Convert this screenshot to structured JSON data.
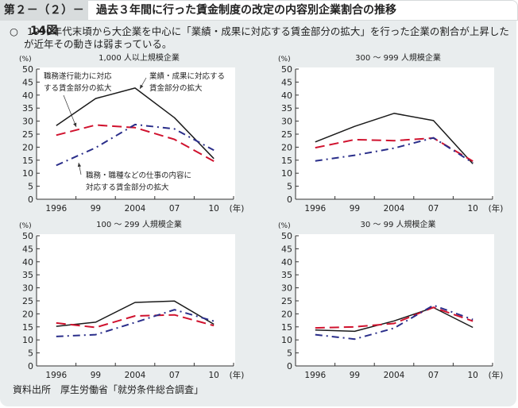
{
  "header": {
    "figure_label": "第２－（２）－14図",
    "title": "過去３年間に行った賃金制度の改定の内容別企業割合の推移"
  },
  "summary": {
    "bullet": "○",
    "line1": "1990年代末頃から大企業を中心に「業績・成果に対応する賃金部分の拡大」を行った企業の割合が上昇した",
    "line2": "が近年その動きは弱まっている。"
  },
  "source": "資料出所　厚生労働省「就労条件総合調査」",
  "series_styles": {
    "performance": {
      "color": "#1a1a1a",
      "dash": "none"
    },
    "ability": {
      "color": "#d0122e",
      "dash": "long-dash"
    },
    "job_content": {
      "color": "#2a2e8a",
      "dash": "dash-dot"
    }
  },
  "chart_data": [
    {
      "type": "line",
      "title": "1,000 人以上規模企業",
      "ylabel": "(%)",
      "xlabel": "(年)",
      "categories": [
        "1996",
        "99",
        "2004",
        "07",
        "10"
      ],
      "ylim": [
        0,
        50
      ],
      "yticks": [
        0,
        5,
        10,
        15,
        20,
        25,
        30,
        35,
        40,
        45,
        50
      ],
      "grid": false,
      "series": [
        {
          "key": "performance",
          "name": "業績・成果に対応する賃金部分の拡大",
          "values": [
            28.3,
            38.7,
            42.7,
            31.3,
            15.6
          ]
        },
        {
          "key": "ability",
          "name": "職務遂行能力に対応する賃金部分の拡大",
          "values": [
            24.6,
            28.5,
            27.5,
            23.0,
            14.6
          ]
        },
        {
          "key": "job_content",
          "name": "職務・職種などの仕事の内容に対応する賃金部分の拡大",
          "values": [
            13.0,
            19.8,
            28.7,
            27.0,
            18.8
          ]
        }
      ],
      "annotations": [
        {
          "text_lines": [
            "職務遂行能力に対応",
            "する賃金部分の拡大"
          ],
          "target": "ability"
        },
        {
          "text_lines": [
            "業績・成果に対応する",
            "賃金部分の拡大"
          ],
          "target": "performance"
        },
        {
          "text_lines": [
            "職務・職種などの仕事の内容に",
            "対応する賃金部分の拡大"
          ],
          "target": "job_content"
        }
      ]
    },
    {
      "type": "line",
      "title": "300 ～ 999 人規模企業",
      "ylabel": "(%)",
      "xlabel": "(年)",
      "categories": [
        "1996",
        "99",
        "2004",
        "07",
        "10"
      ],
      "ylim": [
        0,
        50
      ],
      "yticks": [
        0,
        5,
        10,
        15,
        20,
        25,
        30,
        35,
        40,
        45,
        50
      ],
      "grid": false,
      "series": [
        {
          "key": "performance",
          "name": "業績・成果に対応する賃金部分の拡大",
          "values": [
            22.0,
            28.0,
            33.0,
            30.2,
            13.6
          ]
        },
        {
          "key": "ability",
          "name": "職務遂行能力に対応する賃金部分の拡大",
          "values": [
            19.8,
            22.9,
            22.5,
            23.5,
            14.6
          ]
        },
        {
          "key": "job_content",
          "name": "職務・職種などの仕事の内容に対応する賃金部分の拡大",
          "values": [
            14.7,
            16.9,
            19.6,
            23.6,
            14.0
          ]
        }
      ]
    },
    {
      "type": "line",
      "title": "100 ～ 299 人規模企業",
      "ylabel": "(%)",
      "xlabel": "(年)",
      "categories": [
        "1996",
        "99",
        "2004",
        "07",
        "10"
      ],
      "ylim": [
        0,
        50
      ],
      "yticks": [
        0,
        5,
        10,
        15,
        20,
        25,
        30,
        35,
        40,
        45,
        50
      ],
      "grid": false,
      "series": [
        {
          "key": "performance",
          "name": "業績・成果に対応する賃金部分の拡大",
          "values": [
            15.2,
            16.8,
            24.4,
            24.9,
            16.0
          ]
        },
        {
          "key": "ability",
          "name": "職務遂行能力に対応する賃金部分の拡大",
          "values": [
            16.5,
            14.8,
            19.2,
            19.6,
            15.5
          ]
        },
        {
          "key": "job_content",
          "name": "職務・職種などの仕事の内容に対応する賃金部分の拡大",
          "values": [
            11.3,
            12.0,
            16.7,
            21.6,
            17.2
          ]
        }
      ]
    },
    {
      "type": "line",
      "title": "30 ～ 99 人規模企業",
      "ylabel": "(%)",
      "xlabel": "(年)",
      "categories": [
        "1996",
        "99",
        "2004",
        "07",
        "10"
      ],
      "ylim": [
        0,
        50
      ],
      "yticks": [
        0,
        5,
        10,
        15,
        20,
        25,
        30,
        35,
        40,
        45,
        50
      ],
      "grid": false,
      "series": [
        {
          "key": "performance",
          "name": "業績・成果に対応する賃金部分の拡大",
          "values": [
            13.8,
            13.3,
            17.3,
            22.4,
            14.8
          ]
        },
        {
          "key": "ability",
          "name": "職務遂行能力に対応する賃金部分の拡大",
          "values": [
            14.6,
            15.0,
            16.3,
            22.5,
            17.2
          ]
        },
        {
          "key": "job_content",
          "name": "職務・職種などの仕事の内容に対応する賃金部分の拡大",
          "values": [
            12.0,
            10.3,
            14.5,
            23.3,
            17.8
          ]
        }
      ]
    }
  ]
}
